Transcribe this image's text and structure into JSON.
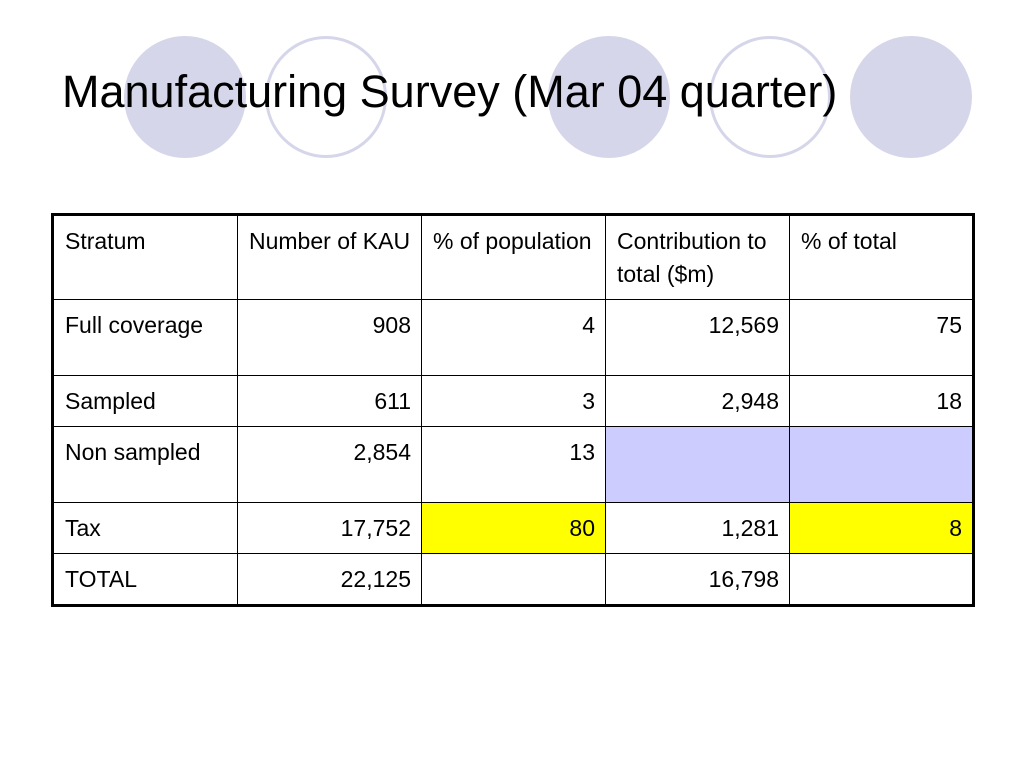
{
  "slide": {
    "title": "Manufacturing Survey (Mar 04 quarter)"
  },
  "colors": {
    "circle_fill": "#d6d6ea",
    "highlight_lavender": "#ccccff",
    "highlight_yellow": "#ffff00"
  },
  "table": {
    "headers": [
      "Stratum",
      "Number of KAU",
      "% of population",
      "Contribution to total ($m)",
      "% of total"
    ],
    "rows": [
      [
        "Full coverage",
        "908",
        "4",
        "12,569",
        "75"
      ],
      [
        "Sampled",
        "611",
        "3",
        "2,948",
        "18"
      ],
      [
        "Non sampled",
        "2,854",
        "13",
        "",
        ""
      ],
      [
        "Tax",
        "17,752",
        "80",
        "1,281",
        "8"
      ],
      [
        "TOTAL",
        "22,125",
        "",
        "16,798",
        ""
      ]
    ]
  }
}
